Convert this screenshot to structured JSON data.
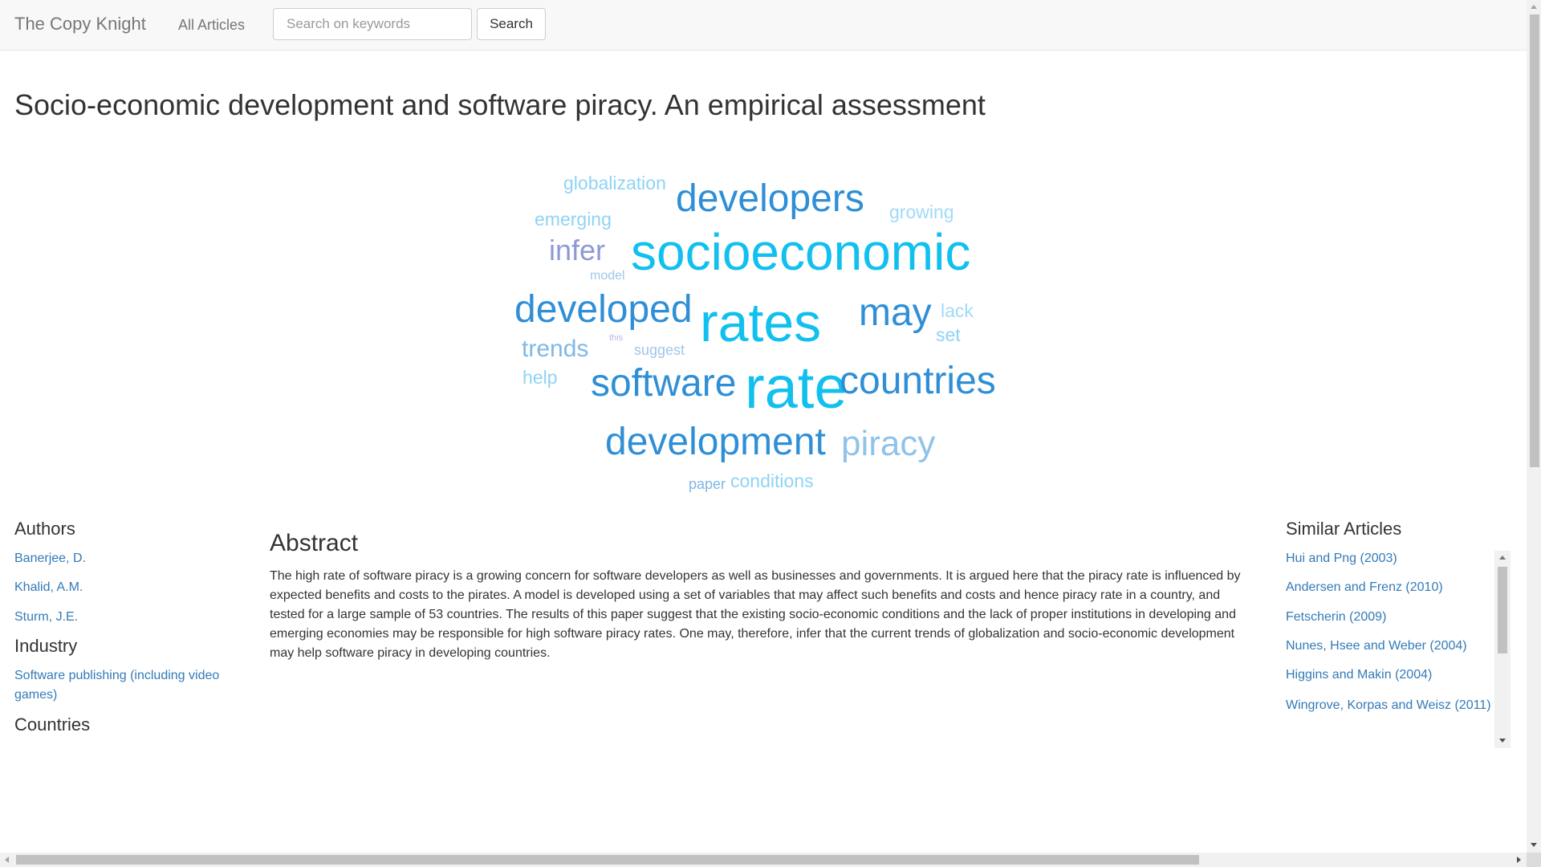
{
  "navbar": {
    "brand": "The Copy Knight",
    "all_articles": "All Articles",
    "search_placeholder": "Search on keywords",
    "search_button": "Search"
  },
  "title": "Socio-economic development and software piracy. An empirical assessment",
  "word_cloud": [
    {
      "text": "globalization",
      "color": "#8fd3f5"
    },
    {
      "text": "developers",
      "color": "#2f8fd6"
    },
    {
      "text": "growing",
      "color": "#a0dbf7"
    },
    {
      "text": "emerging",
      "color": "#8fd3f5"
    },
    {
      "text": "infer",
      "color": "#8f98d6"
    },
    {
      "text": "socioeconomic",
      "color": "#11c0ee"
    },
    {
      "text": "model",
      "color": "#9fc6ea"
    },
    {
      "text": "developed",
      "color": "#2f8fd6"
    },
    {
      "text": "rates",
      "color": "#11c0ee"
    },
    {
      "text": "may",
      "color": "#2f8fd6"
    },
    {
      "text": "lack",
      "color": "#a0dbf7"
    },
    {
      "text": "set",
      "color": "#8fd3f5"
    },
    {
      "text": "this",
      "color": "#b8b8e0"
    },
    {
      "text": "trends",
      "color": "#7fb8e6"
    },
    {
      "text": "suggest",
      "color": "#9fc6ea"
    },
    {
      "text": "help",
      "color": "#8fd3f5"
    },
    {
      "text": "software",
      "color": "#2f8fd6"
    },
    {
      "text": "rate",
      "color": "#11c0ee"
    },
    {
      "text": "countries",
      "color": "#2f8fd6"
    },
    {
      "text": "development",
      "color": "#2f8fd6"
    },
    {
      "text": "piracy",
      "color": "#8fc3ea"
    },
    {
      "text": "paper",
      "color": "#7fb8e6"
    },
    {
      "text": "conditions",
      "color": "#8fd3f5"
    }
  ],
  "authors": {
    "heading": "Authors",
    "items": [
      "Banerjee, D.",
      "Khalid, A.M.",
      "Sturm, J.E."
    ]
  },
  "industry": {
    "heading": "Industry",
    "items": [
      "Software publishing (including video games)"
    ]
  },
  "countries": {
    "heading": "Countries"
  },
  "abstract": {
    "heading": "Abstract",
    "text": "The high rate of software piracy is a growing concern for software developers as well as businesses and governments. It is argued here that the piracy rate is influenced by expected benefits and costs to the pirates. A model is developed using a set of variables that may affect such benefits and costs and hence piracy rate in a country, and tested for a large sample of 53 countries. The results of this paper suggest that the existing socio-economic conditions and the lack of proper institutions in developing and emerging economies may be responsible for high software piracy rates. One may, therefore, infer that the current trends of globalization and socio-economic development may help software piracy in developing countries."
  },
  "similar_articles": {
    "heading": "Similar Articles",
    "items": [
      "Hui and Png (2003)",
      "Andersen and Frenz (2010)",
      "Fetscherin (2009)",
      "Nunes, Hsee and Weber (2004)",
      "Higgins and Makin (2004)",
      "Wingrove, Korpas and Weisz (2011)"
    ]
  }
}
